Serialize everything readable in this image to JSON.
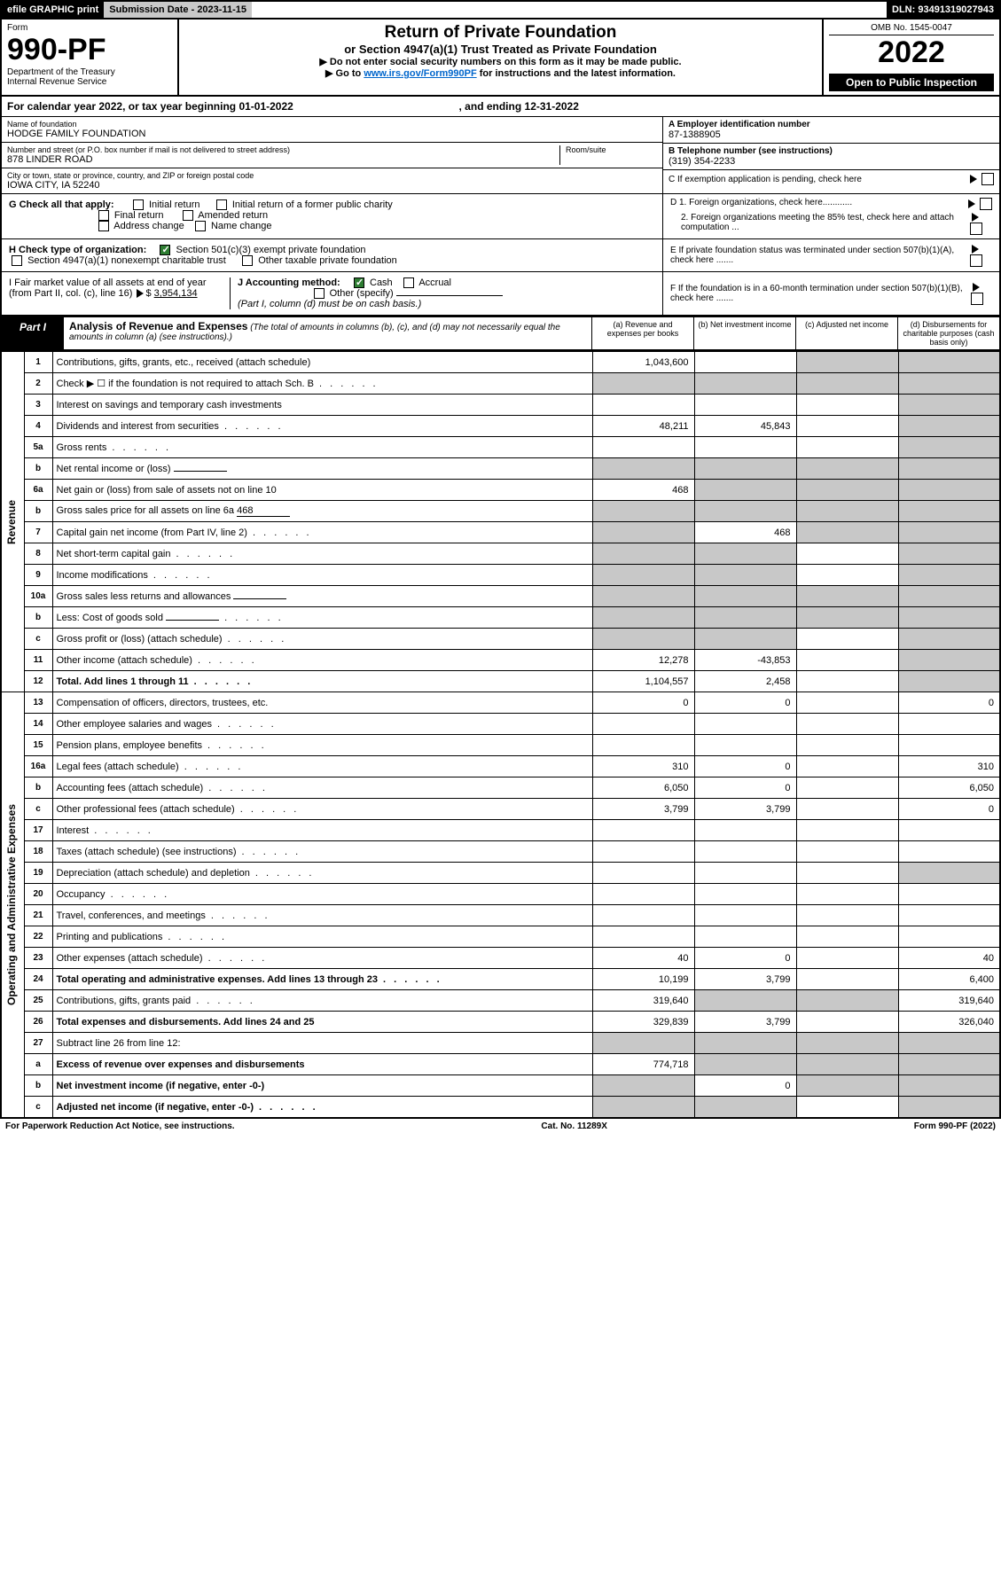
{
  "topbar": {
    "efile": "efile GRAPHIC print",
    "sub_label": "Submission Date - 2023-11-15",
    "dln": "DLN: 93491319027943"
  },
  "header": {
    "form_label": "Form",
    "form_num": "990-PF",
    "dept": "Department of the Treasury",
    "irs": "Internal Revenue Service",
    "title": "Return of Private Foundation",
    "subtitle": "or Section 4947(a)(1) Trust Treated as Private Foundation",
    "note1": "▶ Do not enter social security numbers on this form as it may be made public.",
    "note2_pre": "▶ Go to ",
    "note2_link": "www.irs.gov/Form990PF",
    "note2_post": " for instructions and the latest information.",
    "omb": "OMB No. 1545-0047",
    "year": "2022",
    "open": "Open to Public Inspection"
  },
  "calyear": {
    "text": "For calendar year 2022, or tax year beginning 01-01-2022",
    "ending": ", and ending 12-31-2022"
  },
  "info": {
    "name_label": "Name of foundation",
    "name": "HODGE FAMILY FOUNDATION",
    "addr_label": "Number and street (or P.O. box number if mail is not delivered to street address)",
    "addr": "878 LINDER ROAD",
    "room_label": "Room/suite",
    "city_label": "City or town, state or province, country, and ZIP or foreign postal code",
    "city": "IOWA CITY, IA  52240",
    "a_label": "A Employer identification number",
    "a_val": "87-1388905",
    "b_label": "B Telephone number (see instructions)",
    "b_val": "(319) 354-2233",
    "c_label": "C If exemption application is pending, check here"
  },
  "checks": {
    "g_label": "G Check all that apply:",
    "g_opts": [
      "Initial return",
      "Initial return of a former public charity",
      "Final return",
      "Amended return",
      "Address change",
      "Name change"
    ],
    "h_label": "H Check type of organization:",
    "h_opt1": "Section 501(c)(3) exempt private foundation",
    "h_opt2": "Section 4947(a)(1) nonexempt charitable trust",
    "h_opt3": "Other taxable private foundation",
    "i_label": "I Fair market value of all assets at end of year (from Part II, col. (c), line 16)",
    "i_val": "3,954,134",
    "j_label": "J Accounting method:",
    "j_cash": "Cash",
    "j_accrual": "Accrual",
    "j_other": "Other (specify)",
    "j_note": "(Part I, column (d) must be on cash basis.)",
    "d1": "D 1. Foreign organizations, check here............",
    "d2": "2. Foreign organizations meeting the 85% test, check here and attach computation ...",
    "e": "E  If private foundation status was terminated under section 507(b)(1)(A), check here .......",
    "f": "F  If the foundation is in a 60-month termination under section 507(b)(1)(B), check here .......",
    "dollar": "$"
  },
  "part1": {
    "label": "Part I",
    "title": "Analysis of Revenue and Expenses",
    "title_note": " (The total of amounts in columns (b), (c), and (d) may not necessarily equal the amounts in column (a) (see instructions).)",
    "col_a": "(a)  Revenue and expenses per books",
    "col_b": "(b)  Net investment income",
    "col_c": "(c)  Adjusted net income",
    "col_d": "(d)  Disbursements for charitable purposes (cash basis only)"
  },
  "sections": {
    "revenue": "Revenue",
    "expenses": "Operating and Administrative Expenses"
  },
  "rows": [
    {
      "n": "1",
      "desc": "Contributions, gifts, grants, etc., received (attach schedule)",
      "a": "1,043,600",
      "b": "",
      "c": "grey",
      "d": "grey"
    },
    {
      "n": "2",
      "desc": "Check ▶ ☐ if the foundation is not required to attach Sch. B",
      "a": "grey",
      "b": "grey",
      "c": "grey",
      "d": "grey",
      "dots": true
    },
    {
      "n": "3",
      "desc": "Interest on savings and temporary cash investments",
      "a": "",
      "b": "",
      "c": "",
      "d": "grey"
    },
    {
      "n": "4",
      "desc": "Dividends and interest from securities",
      "a": "48,211",
      "b": "45,843",
      "c": "",
      "d": "grey",
      "dots": true
    },
    {
      "n": "5a",
      "desc": "Gross rents",
      "a": "",
      "b": "",
      "c": "",
      "d": "grey",
      "dots": true
    },
    {
      "n": "b",
      "desc": "Net rental income or (loss)",
      "a": "grey",
      "b": "grey",
      "c": "grey",
      "d": "grey",
      "inline": true
    },
    {
      "n": "6a",
      "desc": "Net gain or (loss) from sale of assets not on line 10",
      "a": "468",
      "b": "grey",
      "c": "grey",
      "d": "grey"
    },
    {
      "n": "b",
      "desc": "Gross sales price for all assets on line 6a",
      "a": "grey",
      "b": "grey",
      "c": "grey",
      "d": "grey",
      "inline": true,
      "inlineval": "468"
    },
    {
      "n": "7",
      "desc": "Capital gain net income (from Part IV, line 2)",
      "a": "grey",
      "b": "468",
      "c": "grey",
      "d": "grey",
      "dots": true
    },
    {
      "n": "8",
      "desc": "Net short-term capital gain",
      "a": "grey",
      "b": "grey",
      "c": "",
      "d": "grey",
      "dots": true
    },
    {
      "n": "9",
      "desc": "Income modifications",
      "a": "grey",
      "b": "grey",
      "c": "",
      "d": "grey",
      "dots": true
    },
    {
      "n": "10a",
      "desc": "Gross sales less returns and allowances",
      "a": "grey",
      "b": "grey",
      "c": "grey",
      "d": "grey",
      "inline": true
    },
    {
      "n": "b",
      "desc": "Less: Cost of goods sold",
      "a": "grey",
      "b": "grey",
      "c": "grey",
      "d": "grey",
      "inline": true,
      "dots": true
    },
    {
      "n": "c",
      "desc": "Gross profit or (loss) (attach schedule)",
      "a": "grey",
      "b": "grey",
      "c": "",
      "d": "grey",
      "dots": true
    },
    {
      "n": "11",
      "desc": "Other income (attach schedule)",
      "a": "12,278",
      "b": "-43,853",
      "c": "",
      "d": "grey",
      "dots": true
    },
    {
      "n": "12",
      "desc": "Total. Add lines 1 through 11",
      "a": "1,104,557",
      "b": "2,458",
      "c": "",
      "d": "grey",
      "dots": true,
      "bold": true
    }
  ],
  "exp_rows": [
    {
      "n": "13",
      "desc": "Compensation of officers, directors, trustees, etc.",
      "a": "0",
      "b": "0",
      "c": "",
      "d": "0"
    },
    {
      "n": "14",
      "desc": "Other employee salaries and wages",
      "a": "",
      "b": "",
      "c": "",
      "d": "",
      "dots": true
    },
    {
      "n": "15",
      "desc": "Pension plans, employee benefits",
      "a": "",
      "b": "",
      "c": "",
      "d": "",
      "dots": true
    },
    {
      "n": "16a",
      "desc": "Legal fees (attach schedule)",
      "a": "310",
      "b": "0",
      "c": "",
      "d": "310",
      "dots": true
    },
    {
      "n": "b",
      "desc": "Accounting fees (attach schedule)",
      "a": "6,050",
      "b": "0",
      "c": "",
      "d": "6,050",
      "dots": true
    },
    {
      "n": "c",
      "desc": "Other professional fees (attach schedule)",
      "a": "3,799",
      "b": "3,799",
      "c": "",
      "d": "0",
      "dots": true
    },
    {
      "n": "17",
      "desc": "Interest",
      "a": "",
      "b": "",
      "c": "",
      "d": "",
      "dots": true
    },
    {
      "n": "18",
      "desc": "Taxes (attach schedule) (see instructions)",
      "a": "",
      "b": "",
      "c": "",
      "d": "",
      "dots": true
    },
    {
      "n": "19",
      "desc": "Depreciation (attach schedule) and depletion",
      "a": "",
      "b": "",
      "c": "",
      "d": "grey",
      "dots": true
    },
    {
      "n": "20",
      "desc": "Occupancy",
      "a": "",
      "b": "",
      "c": "",
      "d": "",
      "dots": true
    },
    {
      "n": "21",
      "desc": "Travel, conferences, and meetings",
      "a": "",
      "b": "",
      "c": "",
      "d": "",
      "dots": true
    },
    {
      "n": "22",
      "desc": "Printing and publications",
      "a": "",
      "b": "",
      "c": "",
      "d": "",
      "dots": true
    },
    {
      "n": "23",
      "desc": "Other expenses (attach schedule)",
      "a": "40",
      "b": "0",
      "c": "",
      "d": "40",
      "dots": true
    },
    {
      "n": "24",
      "desc": "Total operating and administrative expenses. Add lines 13 through 23",
      "a": "10,199",
      "b": "3,799",
      "c": "",
      "d": "6,400",
      "dots": true,
      "bold": true
    },
    {
      "n": "25",
      "desc": "Contributions, gifts, grants paid",
      "a": "319,640",
      "b": "grey",
      "c": "grey",
      "d": "319,640",
      "dots": true
    },
    {
      "n": "26",
      "desc": "Total expenses and disbursements. Add lines 24 and 25",
      "a": "329,839",
      "b": "3,799",
      "c": "",
      "d": "326,040",
      "bold": true
    },
    {
      "n": "27",
      "desc": "Subtract line 26 from line 12:",
      "a": "grey",
      "b": "grey",
      "c": "grey",
      "d": "grey"
    },
    {
      "n": "a",
      "desc": "Excess of revenue over expenses and disbursements",
      "a": "774,718",
      "b": "grey",
      "c": "grey",
      "d": "grey",
      "bold": true
    },
    {
      "n": "b",
      "desc": "Net investment income (if negative, enter -0-)",
      "a": "grey",
      "b": "0",
      "c": "grey",
      "d": "grey",
      "bold": true
    },
    {
      "n": "c",
      "desc": "Adjusted net income (if negative, enter -0-)",
      "a": "grey",
      "b": "grey",
      "c": "",
      "d": "grey",
      "bold": true,
      "dots": true
    }
  ],
  "footer": {
    "left": "For Paperwork Reduction Act Notice, see instructions.",
    "mid": "Cat. No. 11289X",
    "right": "Form 990-PF (2022)"
  },
  "colors": {
    "grey": "#c8c8c8",
    "black": "#000000",
    "link": "#0066cc",
    "check_green": "#2e7d32"
  }
}
